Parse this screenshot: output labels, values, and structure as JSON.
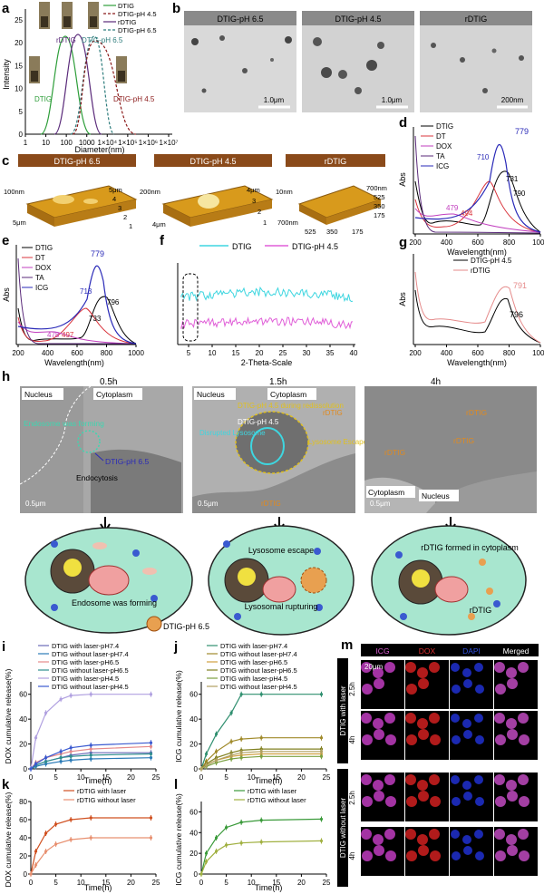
{
  "panels": {
    "a": {
      "label": "a",
      "ylabel": "Intensity",
      "xlabel": "Diameter(nm)",
      "xticks": [
        "1",
        "10",
        "100",
        "1000",
        "1×10⁴",
        "1×10⁵",
        "1×10⁶",
        "1×10⁷"
      ],
      "yticks": [
        "0",
        "5",
        "10",
        "15",
        "20",
        "25"
      ],
      "legend": [
        "DTIG",
        "DTIG-pH 4.5",
        "rDTIG",
        "DTIG-pH 6.5"
      ],
      "annotations": [
        "rDTIG",
        "DTIG-pH 6.5",
        "DTIG",
        "DTIG-pH 4.5"
      ]
    },
    "b": {
      "label": "b",
      "images": [
        {
          "title": "DTIG-pH 6.5",
          "scale": "1.0μm"
        },
        {
          "title": "DTIG-pH 4.5",
          "scale": "1.0μm"
        },
        {
          "title": "rDTIG",
          "scale": "200nm"
        }
      ]
    },
    "c": {
      "label": "c",
      "maps": [
        {
          "title": "DTIG-pH 6.5",
          "z": "100nm",
          "x": "5μm",
          "y": "5μm",
          "ticks": [
            "4",
            "3",
            "2",
            "1"
          ]
        },
        {
          "title": "DTIG-pH 4.5",
          "z": "200nm",
          "x": "4μm",
          "y": "4μm",
          "ticks": [
            "3",
            "2",
            "1"
          ]
        },
        {
          "title": "rDTIG",
          "z": "10nm",
          "x": "700nm",
          "y": "700nm",
          "ticks": [
            "525",
            "350",
            "175",
            "525",
            "350",
            "175"
          ]
        }
      ]
    },
    "d": {
      "label": "d",
      "ylabel": "Abs",
      "xlabel": "Wavelength(nm)",
      "xticks": [
        "200",
        "400",
        "600",
        "800",
        "1000"
      ],
      "legend": [
        "DTIG",
        "DT",
        "DOX",
        "TA",
        "ICG"
      ],
      "peaks": [
        "779",
        "710",
        "731",
        "790",
        "479",
        "494"
      ]
    },
    "e": {
      "label": "e",
      "ylabel": "Abs",
      "xlabel": "Wavelength(nm)",
      "xticks": [
        "200",
        "400",
        "600",
        "800",
        "1000"
      ],
      "legend": [
        "DTIG",
        "DT",
        "DOX",
        "TA",
        "ICG"
      ],
      "peaks": [
        "779",
        "713",
        "733",
        "796",
        "478",
        "497"
      ]
    },
    "f": {
      "label": "f",
      "xlabel": "2-Theta-Scale",
      "xticks": [
        "5",
        "10",
        "15",
        "20",
        "25",
        "30",
        "35",
        "40"
      ],
      "legend": [
        "DTIG",
        "DTIG-pH 4.5"
      ]
    },
    "g": {
      "label": "g",
      "ylabel": "Abs",
      "xlabel": "Wavelength(nm)",
      "xticks": [
        "200",
        "400",
        "600",
        "800",
        "1000"
      ],
      "legend": [
        "DTIG-pH 4.5",
        "rDTIG"
      ],
      "peaks": [
        "791",
        "796"
      ]
    },
    "h": {
      "label": "h",
      "times": [
        "0.5h",
        "1.5h",
        "4h"
      ],
      "em1": {
        "nucleus": "Nucleus",
        "cytoplasm": "Cytoplasm",
        "endosome": "Endosome was forming",
        "particle": "DTIG-pH 6.5",
        "endocytosis": "Endocytosis",
        "scale": "0.5μm"
      },
      "em2": {
        "nucleus": "Nucleus",
        "cytoplasm": "Cytoplasm",
        "redissolution": "DTIG-pH 4.5 during redissolution",
        "ph45": "DTIG-pH 4.5",
        "disrupted": "Disrupted Lysosome",
        "escape": "Lysosome Escape",
        "rdtig_top": "rDTIG",
        "rdtig_bottom": "rDTIG",
        "scale": "0.5μm"
      },
      "em3": {
        "rdtig1": "rDTIG",
        "rdtig2": "rDTIG",
        "rdtig3": "rDTIG",
        "cytoplasm": "Cytoplasm",
        "nucleus": "Nucleus",
        "scale": "0.5μm"
      },
      "cell1": {
        "endosome": "Endosome was forming",
        "particle": "DTIG-pH 6.5"
      },
      "cell2": {
        "escape": "Lysosome escape",
        "rupture": "Lysosomal rupturing"
      },
      "cell3": {
        "formed": "rDTIG formed in cytoplasm",
        "rdtig": "rDTIG"
      }
    },
    "i": {
      "label": "i",
      "ylabel": "DOX cumulative release(%)",
      "xlabel": "Time(h)",
      "xticks": [
        "0",
        "5",
        "10",
        "15",
        "20",
        "25"
      ],
      "yticks": [
        "0",
        "20",
        "40",
        "60"
      ]
    },
    "j": {
      "label": "j",
      "ylabel": "ICG cumulative release(%)",
      "xlabel": "Time(h)",
      "xticks": [
        "0",
        "5",
        "10",
        "15",
        "20",
        "25"
      ],
      "yticks": [
        "0",
        "20",
        "40",
        "60"
      ]
    },
    "k": {
      "label": "k",
      "ylabel": "DOX cumulative release(%)",
      "xlabel": "Time(h)",
      "xticks": [
        "0",
        "5",
        "10",
        "15",
        "20",
        "25"
      ],
      "yticks": [
        "0",
        "20",
        "40",
        "60",
        "80"
      ]
    },
    "l": {
      "label": "l",
      "ylabel": "ICG cumulative release(%)",
      "xlabel": "Time(h)",
      "xticks": [
        "0",
        "5",
        "10",
        "15",
        "20",
        "25"
      ],
      "yticks": [
        "0",
        "20",
        "40",
        "60"
      ]
    },
    "m": {
      "label": "m",
      "columns": [
        "ICG",
        "DOX",
        "DAPI",
        "Merged"
      ],
      "groups": [
        "DTIG with laser",
        "DTIG without laser"
      ],
      "rows": [
        "2.5h",
        "4h",
        "2.5h",
        "4h"
      ],
      "scale": "20μm"
    }
  },
  "colors": {
    "black": "#000000",
    "red": "#d9343c",
    "magenta": "#c23fbf",
    "purple": "#5a2a7a",
    "blue": "#2a2ab8",
    "green": "#2e9e3a",
    "darkred": "#8b1a1a",
    "teal": "#2f7d7d",
    "cyan": "#3ed6e0",
    "pink": "#e05fd8"
  },
  "chart_data": [
    {
      "type": "line",
      "id": "a",
      "xscale": "log",
      "xlabel": "Diameter(nm)",
      "ylabel": "Intensity",
      "ylim": [
        0,
        25
      ],
      "series": [
        {
          "name": "DTIG",
          "peak_x": 60,
          "peak_y": 21
        },
        {
          "name": "DTIG-pH 4.5",
          "peak_x": 1200,
          "peak_y": 20
        },
        {
          "name": "rDTIG",
          "peak_x": 110,
          "peak_y": 21
        },
        {
          "name": "DTIG-pH 6.5",
          "peak_x": 600,
          "peak_y": 22
        }
      ]
    },
    {
      "type": "line",
      "id": "i",
      "xlabel": "Time(h)",
      "ylabel": "DOX cumulative release(%)",
      "ylim": [
        0,
        70
      ],
      "x": [
        0,
        1,
        3,
        6,
        8,
        12,
        24
      ],
      "series": [
        {
          "name": "DTIG with laser-pH7.4",
          "values": [
            0,
            3,
            6,
            9,
            11,
            13,
            13
          ]
        },
        {
          "name": "DTIG without laser-pH7.4",
          "values": [
            0,
            2,
            4,
            6,
            7,
            8,
            9
          ]
        },
        {
          "name": "DTIG with laser-pH6.5",
          "values": [
            0,
            5,
            9,
            12,
            14,
            16,
            18
          ]
        },
        {
          "name": "DTIG without laser-pH6.5",
          "values": [
            0,
            3,
            6,
            9,
            10,
            11,
            12
          ]
        },
        {
          "name": "DTIG with laser-pH4.5",
          "values": [
            0,
            25,
            45,
            56,
            59,
            60,
            60
          ]
        },
        {
          "name": "DTIG without laser-pH4.5",
          "values": [
            0,
            4,
            9,
            14,
            17,
            19,
            21
          ]
        }
      ]
    },
    {
      "type": "line",
      "id": "j",
      "xlabel": "Time(h)",
      "ylabel": "ICG cumulative release(%)",
      "ylim": [
        0,
        70
      ],
      "x": [
        0,
        1,
        3,
        6,
        8,
        12,
        24
      ],
      "series": [
        {
          "name": "DTIG with laser-pH7.4",
          "values": [
            0,
            12,
            28,
            45,
            60,
            60,
            60
          ]
        },
        {
          "name": "DTIG without laser-pH7.4",
          "values": [
            0,
            6,
            14,
            22,
            24,
            25,
            25
          ]
        },
        {
          "name": "DTIG with laser-pH6.5",
          "values": [
            0,
            3,
            7,
            10,
            11,
            12,
            12
          ]
        },
        {
          "name": "DTIG without laser-pH6.5",
          "values": [
            0,
            4,
            9,
            13,
            15,
            16,
            16
          ]
        },
        {
          "name": "DTIG with laser-pH4.5",
          "values": [
            0,
            2,
            5,
            8,
            9,
            10,
            10
          ]
        },
        {
          "name": "DTIG without laser-pH4.5",
          "values": [
            0,
            3,
            7,
            11,
            13,
            14,
            14
          ]
        }
      ]
    },
    {
      "type": "line",
      "id": "k",
      "xlabel": "Time(h)",
      "ylabel": "DOX cumulative release(%)",
      "ylim": [
        0,
        80
      ],
      "x": [
        0,
        1,
        3,
        5,
        8,
        12,
        24
      ],
      "series": [
        {
          "name": "rDTIG with laser",
          "values": [
            0,
            25,
            45,
            55,
            60,
            62,
            62
          ]
        },
        {
          "name": "rDTIG without laser",
          "values": [
            0,
            10,
            25,
            33,
            38,
            40,
            40
          ]
        }
      ]
    },
    {
      "type": "line",
      "id": "l",
      "xlabel": "Time(h)",
      "ylabel": "ICG cumulative release(%)",
      "ylim": [
        0,
        70
      ],
      "x": [
        0,
        1,
        3,
        5,
        8,
        12,
        24
      ],
      "series": [
        {
          "name": "rDTIG with laser",
          "values": [
            0,
            20,
            35,
            45,
            50,
            52,
            53
          ]
        },
        {
          "name": "rDTIG without laser",
          "values": [
            0,
            12,
            22,
            28,
            30,
            31,
            32
          ]
        }
      ]
    }
  ]
}
